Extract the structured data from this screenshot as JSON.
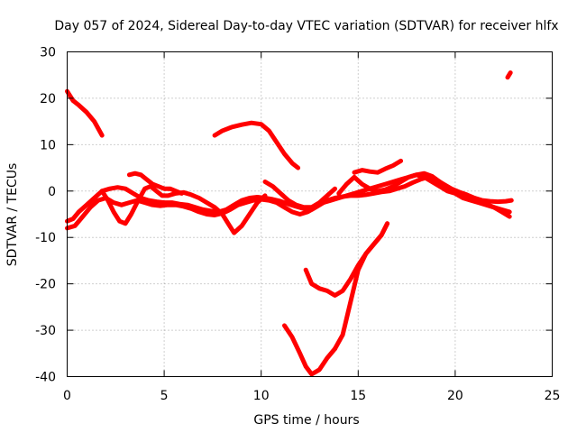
{
  "chart_data": {
    "type": "line",
    "title": "Day 057 of 2024, Sidereal Day-to-day VTEC variation (SDTVAR) for receiver hlfx",
    "xlabel": "GPS time / hours",
    "ylabel": "SDTVAR / TECUs",
    "xlim": [
      0,
      25
    ],
    "ylim": [
      -40,
      30
    ],
    "xticks": [
      0,
      5,
      10,
      15,
      20,
      25
    ],
    "yticks": [
      -40,
      -30,
      -20,
      -10,
      0,
      10,
      20,
      30
    ],
    "xtick_labels": [
      "0",
      "5",
      "10",
      "15",
      "20",
      "25"
    ],
    "ytick_labels": [
      "-40",
      "-30",
      "-20",
      "-10",
      "0",
      "10",
      "20",
      "30"
    ],
    "grid": true,
    "legend": "none",
    "color": "#ff0000",
    "series": [
      {
        "x": [
          0.0,
          0.3,
          0.6,
          1.0,
          1.4,
          1.8
        ],
        "y": [
          21.5,
          19.5,
          18.5,
          17.0,
          15.0,
          12.0
        ]
      },
      {
        "x": [
          7.6,
          8.0,
          8.5,
          9.0,
          9.5,
          10.0,
          10.4,
          10.8,
          11.2,
          11.6,
          11.9
        ],
        "y": [
          12.0,
          13.0,
          13.8,
          14.3,
          14.7,
          14.4,
          13.0,
          10.5,
          8.0,
          6.0,
          5.0
        ]
      },
      {
        "x": [
          22.7,
          22.85
        ],
        "y": [
          24.5,
          25.5
        ]
      },
      {
        "x": [
          11.2,
          11.6,
          12.0,
          12.3,
          12.6,
          13.0,
          13.4,
          13.8
        ],
        "y": [
          -29.0,
          -31.5,
          -35.0,
          -37.8,
          -39.5,
          -38.5,
          -36.0,
          -34.0
        ]
      },
      {
        "x": [
          13.8,
          14.2,
          14.6,
          15.0,
          15.4,
          15.8,
          16.2,
          16.5
        ],
        "y": [
          -34.0,
          -31.0,
          -24.0,
          -17.0,
          -13.5,
          -11.5,
          -9.5,
          -7.0
        ]
      },
      {
        "x": [
          12.3,
          12.6,
          13.0,
          13.4,
          13.8,
          14.2,
          14.6,
          15.0,
          15.4,
          15.8,
          16.2,
          16.5
        ],
        "y": [
          -17.0,
          -20.0,
          -21.0,
          -21.5,
          -22.5,
          -21.5,
          -19.0,
          -16.0,
          -13.5,
          -11.5,
          -9.5,
          -7.0
        ]
      },
      {
        "x": [
          0.0,
          0.3,
          0.6,
          1.0,
          1.4,
          1.8,
          2.2,
          2.6,
          3.0,
          3.4,
          3.8,
          4.2,
          4.6,
          5.0,
          5.4,
          5.8,
          6.2,
          6.6,
          7.0,
          7.4,
          7.8,
          8.2,
          8.6,
          9.0,
          9.4,
          9.8,
          10.2,
          10.6,
          11.0,
          11.4,
          11.8,
          12.2,
          12.6,
          13.0,
          13.4,
          13.8,
          14.2,
          14.6,
          15.0,
          15.4,
          15.8,
          16.2,
          16.6,
          17.0,
          17.4,
          17.8,
          18.2,
          18.6,
          19.0,
          19.4,
          19.8,
          20.2,
          20.6,
          21.0,
          21.4,
          21.8,
          22.2,
          22.6,
          22.9
        ],
        "y": [
          -6.5,
          -6.0,
          -4.5,
          -3.0,
          -1.5,
          0.0,
          0.5,
          0.8,
          0.5,
          -0.5,
          -1.5,
          -2.0,
          -2.3,
          -2.5,
          -2.5,
          -2.8,
          -3.0,
          -3.5,
          -4.0,
          -4.3,
          -4.5,
          -4.0,
          -3.0,
          -2.0,
          -1.5,
          -1.3,
          -1.5,
          -1.8,
          -2.2,
          -2.8,
          -3.3,
          -3.8,
          -4.0,
          -3.0,
          -2.0,
          -1.5,
          -1.2,
          -1.0,
          -1.0,
          -0.8,
          -0.5,
          -0.2,
          0.0,
          0.5,
          1.0,
          1.8,
          2.5,
          3.0,
          2.5,
          1.5,
          0.5,
          -0.2,
          -0.8,
          -1.5,
          -2.0,
          -2.2,
          -2.3,
          -2.2,
          -2.0
        ]
      },
      {
        "x": [
          0.0,
          0.4,
          0.8,
          1.2,
          1.6,
          2.0,
          2.4,
          2.8,
          3.2,
          3.6,
          4.0,
          4.4,
          4.8,
          5.2,
          5.6,
          6.0,
          6.4,
          6.8,
          7.2,
          7.6,
          8.0,
          8.4,
          8.8,
          9.2,
          9.6,
          10.0,
          10.4,
          10.8,
          11.2,
          11.6,
          12.0,
          12.4,
          12.8,
          13.2,
          13.6,
          14.0,
          14.4,
          14.8,
          15.2,
          15.6,
          16.0,
          16.4,
          16.8,
          17.2,
          17.6,
          18.0,
          18.4,
          18.8,
          19.2,
          19.6,
          20.0,
          20.4,
          20.8,
          21.2,
          21.6,
          22.0,
          22.4,
          22.8
        ],
        "y": [
          -8.0,
          -7.5,
          -5.5,
          -3.5,
          -2.0,
          -1.5,
          -2.5,
          -3.0,
          -2.5,
          -2.0,
          -2.5,
          -3.0,
          -3.2,
          -3.0,
          -3.0,
          -3.3,
          -3.8,
          -4.5,
          -5.0,
          -5.2,
          -4.8,
          -4.0,
          -3.0,
          -2.5,
          -2.0,
          -1.8,
          -2.0,
          -2.5,
          -3.5,
          -4.5,
          -5.0,
          -4.5,
          -3.5,
          -2.5,
          -2.0,
          -1.5,
          -1.0,
          -0.5,
          0.0,
          0.5,
          1.0,
          1.5,
          2.0,
          2.5,
          3.0,
          3.5,
          3.8,
          3.2,
          2.0,
          0.5,
          -0.5,
          -1.0,
          -1.5,
          -2.0,
          -2.8,
          -3.5,
          -4.5,
          -5.5
        ]
      },
      {
        "x": [
          1.8,
          2.1,
          2.4,
          2.7,
          3.0,
          3.3,
          3.6,
          4.0,
          4.3,
          4.6,
          4.9,
          5.2,
          5.6,
          6.0,
          6.4,
          6.8,
          7.2,
          7.6,
          8.0,
          8.3,
          8.6,
          9.0,
          9.4,
          9.8,
          10.2
        ],
        "y": [
          0.0,
          -2.0,
          -4.5,
          -6.5,
          -7.0,
          -5.0,
          -2.5,
          0.5,
          1.0,
          0.0,
          -1.0,
          -1.0,
          -0.5,
          -0.3,
          -0.8,
          -1.5,
          -2.5,
          -3.5,
          -5.0,
          -7.0,
          -9.0,
          -7.5,
          -5.0,
          -2.5,
          -1.0
        ]
      },
      {
        "x": [
          3.2,
          3.5,
          3.8,
          4.1,
          4.4,
          4.7,
          5.0,
          5.3,
          5.6,
          5.9
        ],
        "y": [
          3.5,
          3.8,
          3.5,
          2.5,
          1.5,
          1.0,
          0.5,
          0.5,
          0.0,
          -0.5
        ]
      },
      {
        "x": [
          14.8,
          15.2,
          15.6,
          16.0,
          16.4,
          16.8,
          17.2
        ],
        "y": [
          4.0,
          4.5,
          4.2,
          4.0,
          4.8,
          5.5,
          6.5
        ]
      },
      {
        "x": [
          14.0,
          14.4,
          14.8,
          15.2,
          15.6,
          16.0,
          16.4,
          16.8,
          17.2,
          17.6,
          18.0,
          18.4,
          18.8,
          19.2,
          19.6,
          20.0,
          20.4,
          20.8,
          21.2,
          21.6,
          22.0,
          22.4,
          22.8
        ],
        "y": [
          -0.5,
          1.5,
          3.0,
          1.5,
          0.5,
          0.0,
          0.3,
          1.0,
          2.0,
          3.0,
          3.5,
          3.0,
          2.0,
          1.0,
          0.0,
          -0.5,
          -1.5,
          -2.0,
          -2.5,
          -3.0,
          -3.5,
          -4.0,
          -4.5
        ]
      },
      {
        "x": [
          10.2,
          10.6,
          11.0,
          11.4,
          11.8,
          12.2,
          12.6,
          13.0,
          13.4,
          13.8
        ],
        "y": [
          2.0,
          1.0,
          -0.5,
          -2.0,
          -3.0,
          -3.5,
          -3.5,
          -2.5,
          -1.0,
          0.5
        ]
      }
    ]
  }
}
